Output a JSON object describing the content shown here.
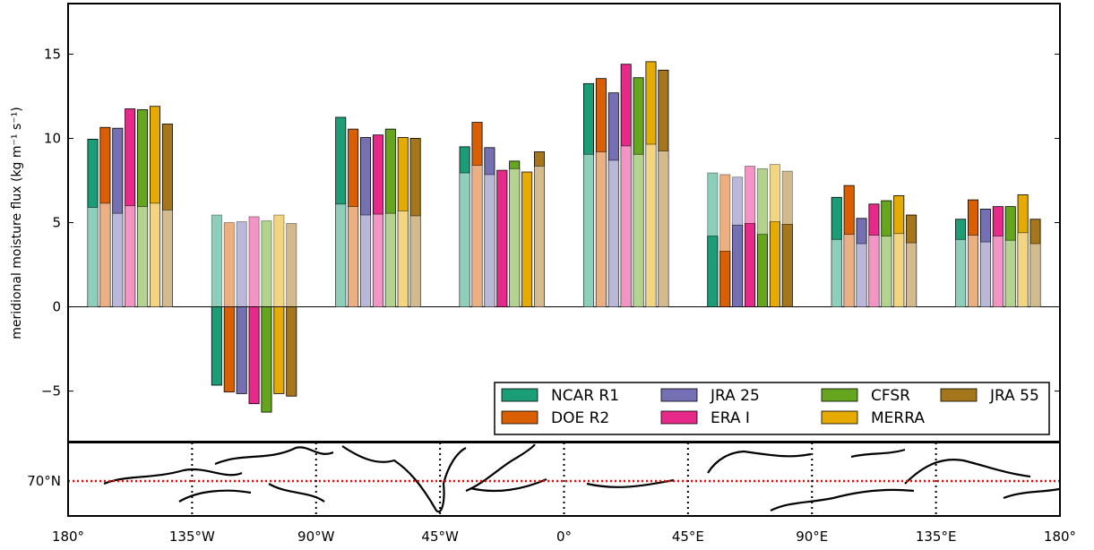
{
  "chart_data": {
    "type": "bar",
    "ylabel": "meridional moisture flux (kg m⁻¹ s⁻¹)",
    "ylim": [
      -8,
      18
    ],
    "yticks": [
      -5,
      0,
      5,
      10,
      15
    ],
    "ytick_labels": [
      "−5",
      "0",
      "5",
      "10",
      "15"
    ],
    "groups_count": 8,
    "series": [
      {
        "name": "NCAR R1",
        "color": "#1b9e77",
        "values": [
          9.95,
          -4.65,
          11.25,
          9.5,
          13.25,
          4.2,
          6.5,
          5.2
        ],
        "light_values": [
          5.9,
          5.45,
          6.1,
          7.95,
          9.05,
          7.95,
          4.0,
          4.0
        ]
      },
      {
        "name": "DOE R2",
        "color": "#d95f02",
        "values": [
          10.65,
          -5.05,
          10.55,
          10.95,
          13.55,
          3.3,
          7.2,
          6.35
        ],
        "light_values": [
          6.15,
          5.0,
          5.95,
          8.4,
          9.2,
          7.85,
          4.3,
          4.25
        ]
      },
      {
        "name": "JRA 25",
        "color": "#7570b3",
        "values": [
          10.6,
          -5.15,
          10.05,
          9.45,
          12.7,
          4.85,
          5.25,
          5.8
        ],
        "light_values": [
          5.55,
          5.05,
          5.45,
          7.85,
          8.7,
          7.7,
          3.75,
          3.85
        ]
      },
      {
        "name": "ERA I",
        "color": "#e7298a",
        "values": [
          11.75,
          -5.75,
          10.2,
          8.1,
          14.4,
          4.95,
          6.1,
          5.95
        ],
        "light_values": [
          6.0,
          5.35,
          5.5,
          8.1,
          9.55,
          8.35,
          4.25,
          4.2
        ]
      },
      {
        "name": "CFSR",
        "color": "#66a61e",
        "values": [
          11.7,
          -6.25,
          10.55,
          8.65,
          13.6,
          4.3,
          6.3,
          5.95
        ],
        "light_values": [
          5.95,
          5.1,
          5.55,
          8.2,
          9.05,
          8.2,
          4.2,
          3.95
        ]
      },
      {
        "name": "MERRA",
        "color": "#e6ab02",
        "values": [
          11.9,
          -5.15,
          10.05,
          8.0,
          14.55,
          5.05,
          6.6,
          6.65
        ],
        "light_values": [
          6.15,
          5.45,
          5.7,
          8.0,
          9.65,
          8.45,
          4.35,
          4.4
        ]
      },
      {
        "name": "JRA 55",
        "color": "#a6761d",
        "values": [
          10.85,
          -5.3,
          10.0,
          9.2,
          14.05,
          4.9,
          5.45,
          5.2
        ],
        "light_values": [
          5.75,
          4.95,
          5.4,
          8.35,
          9.25,
          8.05,
          3.8,
          3.75
        ]
      }
    ],
    "legend": {
      "placement": "lower-right",
      "columns": 4
    }
  },
  "map": {
    "lat_label": "70°N",
    "lon_ticks": [
      "180°",
      "135°W",
      "90°W",
      "45°W",
      "0°",
      "45°E",
      "90°E",
      "135°E",
      "180°"
    ],
    "line_color": "#ff0000"
  }
}
